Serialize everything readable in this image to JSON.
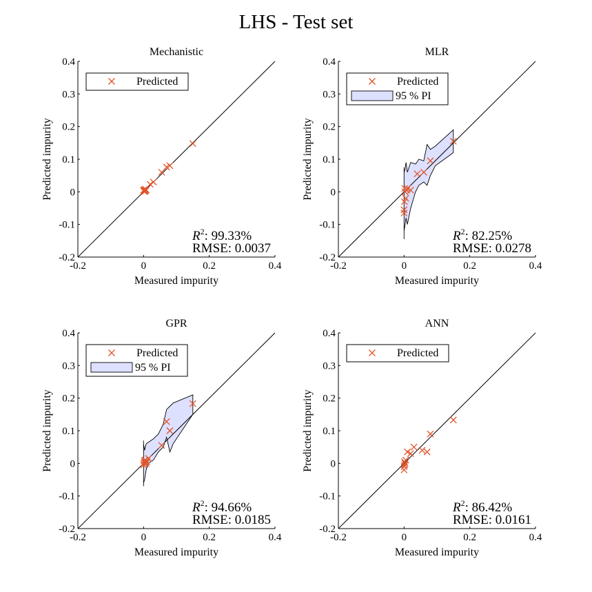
{
  "figure": {
    "title": "LHS - Test set"
  },
  "colors": {
    "marker": "#e0542a",
    "band_fill": "#dde0ff",
    "band_edge": "#000000",
    "axis": "#000000"
  },
  "chart_data": [
    {
      "type": "scatter",
      "title": "Mechanistic",
      "xlabel": "Measured impurity",
      "ylabel": "Predicted impurity",
      "xlim": [
        -0.2,
        0.4
      ],
      "ylim": [
        -0.2,
        0.4
      ],
      "xticks": [
        "-0.2",
        "0",
        "0.2",
        "0.4"
      ],
      "yticks": [
        "-0.2",
        "-0.1",
        "0",
        "0.1",
        "0.2",
        "0.3",
        "0.4"
      ],
      "reference_line": "y = x",
      "legend": [
        "Predicted"
      ],
      "legend_position": "top-left",
      "metrics": {
        "r2_label": "R",
        "r2_sup": "2",
        "r2_value": ": 99.33%",
        "rmse": "RMSE: 0.0037"
      },
      "series": [
        {
          "name": "Predicted",
          "marker": "x",
          "x": [
            0.0,
            0.001,
            0.002,
            0.003,
            0.004,
            0.005,
            0.006,
            0.008,
            0.02,
            0.03,
            0.055,
            0.07,
            0.08,
            0.15
          ],
          "y": [
            0.005,
            0.002,
            0.006,
            0.001,
            0.004,
            0.008,
            0.003,
            0.006,
            0.023,
            0.03,
            0.06,
            0.076,
            0.08,
            0.148
          ]
        }
      ]
    },
    {
      "type": "scatter",
      "title": "MLR",
      "xlabel": "Measured impurity",
      "ylabel": "Predicted impurity",
      "xlim": [
        -0.2,
        0.4
      ],
      "ylim": [
        -0.2,
        0.4
      ],
      "xticks": [
        "-0.2",
        "0",
        "0.2",
        "0.4"
      ],
      "yticks": [
        "-0.2",
        "-0.1",
        "0",
        "0.1",
        "0.2",
        "0.3",
        "0.4"
      ],
      "reference_line": "y = x",
      "legend": [
        "Predicted",
        "95 % PI"
      ],
      "legend_position": "top-left",
      "metrics": {
        "r2_label": "R",
        "r2_sup": "2",
        "r2_value": ": 82.25%",
        "rmse": "RMSE: 0.0278"
      },
      "series": [
        {
          "name": "Predicted",
          "marker": "x",
          "x": [
            0.0,
            0.0,
            0.001,
            0.002,
            0.003,
            0.005,
            0.008,
            0.01,
            0.02,
            0.04,
            0.06,
            0.08,
            0.15
          ],
          "y": [
            -0.065,
            -0.055,
            -0.03,
            0.01,
            0.0,
            -0.02,
            0.005,
            0.01,
            0.005,
            0.055,
            0.06,
            0.095,
            0.155
          ]
        },
        {
          "name": "95 % PI",
          "type": "band",
          "x": [
            0.0,
            0.0,
            0.003,
            0.006,
            0.01,
            0.02,
            0.035,
            0.045,
            0.06,
            0.07,
            0.08,
            0.095,
            0.15
          ],
          "upper": [
            0.075,
            0.06,
            0.07,
            0.09,
            0.06,
            0.09,
            0.085,
            0.1,
            0.095,
            0.145,
            0.13,
            0.14,
            0.19
          ],
          "lower": [
            -0.145,
            -0.12,
            -0.1,
            -0.08,
            -0.1,
            -0.05,
            0.0,
            0.02,
            0.03,
            0.02,
            0.05,
            0.08,
            0.12
          ]
        }
      ]
    },
    {
      "type": "scatter",
      "title": "GPR",
      "xlabel": "Measured impurity",
      "ylabel": "Predicted impurity",
      "xlim": [
        -0.2,
        0.4
      ],
      "ylim": [
        -0.2,
        0.4
      ],
      "xticks": [
        "-0.2",
        "0",
        "0.2",
        "0.4"
      ],
      "yticks": [
        "-0.2",
        "-0.1",
        "0",
        "0.1",
        "0.2",
        "0.3",
        "0.4"
      ],
      "reference_line": "y = x",
      "legend": [
        "Predicted",
        "95 % PI"
      ],
      "legend_position": "top-left",
      "metrics": {
        "r2_label": "R",
        "r2_sup": "2",
        "r2_value": ": 94.66%",
        "rmse": "RMSE: 0.0185"
      },
      "series": [
        {
          "name": "Predicted",
          "marker": "x",
          "x": [
            0.0,
            0.001,
            0.002,
            0.003,
            0.005,
            0.008,
            0.01,
            0.015,
            0.055,
            0.07,
            0.08,
            0.15
          ],
          "y": [
            -0.005,
            0.0,
            0.008,
            0.003,
            0.01,
            0.0,
            0.005,
            0.015,
            0.055,
            0.128,
            0.1,
            0.183
          ]
        },
        {
          "name": "95 % PI",
          "type": "band",
          "x": [
            0.0,
            0.0,
            0.003,
            0.008,
            0.015,
            0.03,
            0.045,
            0.06,
            0.07,
            0.08,
            0.09,
            0.15
          ],
          "upper": [
            0.07,
            0.06,
            0.04,
            0.06,
            0.065,
            0.075,
            0.09,
            0.12,
            0.165,
            0.175,
            0.185,
            0.21
          ],
          "lower": [
            -0.07,
            -0.06,
            -0.05,
            -0.02,
            0.0,
            0.01,
            0.035,
            0.05,
            0.08,
            0.035,
            0.06,
            0.15
          ]
        }
      ]
    },
    {
      "type": "scatter",
      "title": "ANN",
      "xlabel": "Measured impurity",
      "ylabel": "Predicted impurity",
      "xlim": [
        -0.2,
        0.4
      ],
      "ylim": [
        -0.2,
        0.4
      ],
      "xticks": [
        "-0.2",
        "0",
        "0.2",
        "0.4"
      ],
      "yticks": [
        "-0.2",
        "-0.1",
        "0",
        "0.1",
        "0.2",
        "0.3",
        "0.4"
      ],
      "reference_line": "y = x",
      "legend": [
        "Predicted"
      ],
      "legend_position": "top-left",
      "metrics": {
        "r2_label": "R",
        "r2_sup": "2",
        "r2_value": ": 86.42%",
        "rmse": "RMSE: 0.0161"
      },
      "series": [
        {
          "name": "Predicted",
          "marker": "x",
          "x": [
            0.0,
            0.0,
            0.001,
            0.002,
            0.003,
            0.005,
            0.01,
            0.02,
            0.03,
            0.055,
            0.07,
            0.08,
            0.15
          ],
          "y": [
            -0.02,
            -0.01,
            0.005,
            -0.005,
            0.0,
            0.01,
            0.035,
            0.03,
            0.05,
            0.04,
            0.035,
            0.09,
            0.133
          ]
        }
      ]
    }
  ]
}
